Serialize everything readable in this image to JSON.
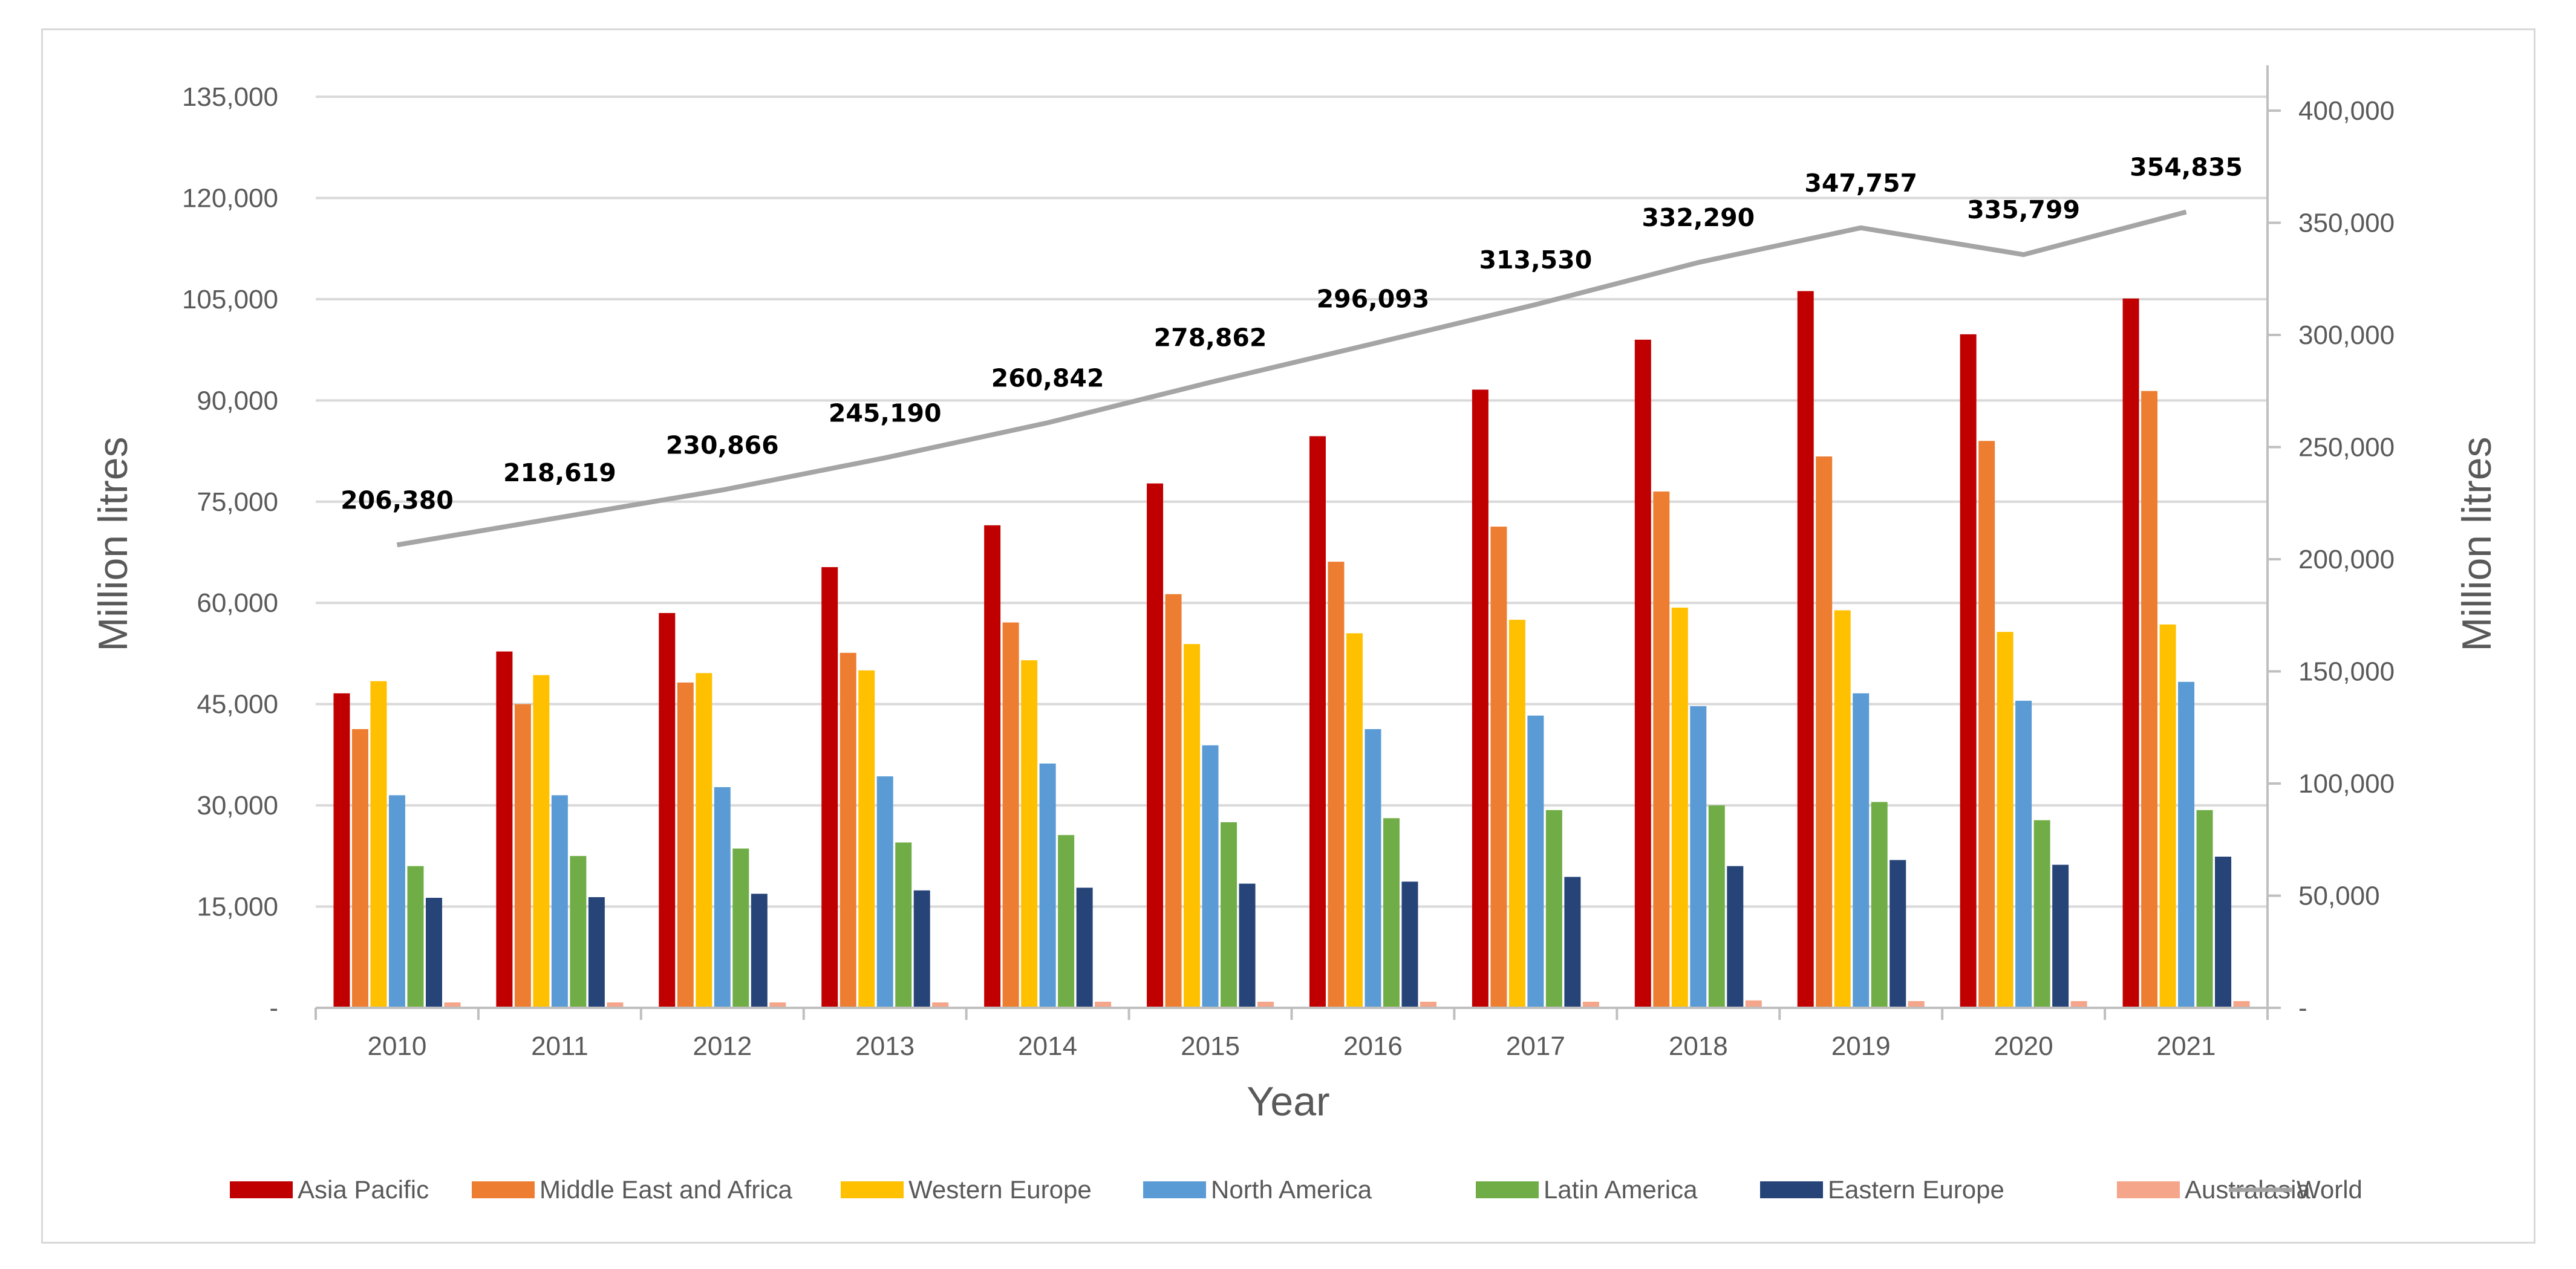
{
  "chart_data": {
    "type": "bar",
    "categories": [
      "2010",
      "2011",
      "2012",
      "2013",
      "2014",
      "2015",
      "2016",
      "2017",
      "2018",
      "2019",
      "2020",
      "2021"
    ],
    "series": [
      {
        "name": "Asia Pacific",
        "color": "#c00000",
        "values": [
          46600,
          52800,
          58500,
          65300,
          71500,
          77700,
          84700,
          91600,
          99000,
          106200,
          99800,
          105100
        ]
      },
      {
        "name": "Middle East and Africa",
        "color": "#ed7d31",
        "values": [
          41300,
          45000,
          48200,
          52600,
          57100,
          61300,
          66100,
          71300,
          76500,
          81700,
          84000,
          91400
        ]
      },
      {
        "name": "Western Europe",
        "color": "#ffc000",
        "values": [
          48400,
          49300,
          49600,
          50000,
          51500,
          53900,
          55500,
          57500,
          59300,
          58900,
          55700,
          56800
        ]
      },
      {
        "name": "North America",
        "color": "#5b9bd5",
        "values": [
          31500,
          31500,
          32700,
          34300,
          36200,
          38900,
          41300,
          43300,
          44700,
          46600,
          45500,
          48300
        ]
      },
      {
        "name": "Latin America",
        "color": "#70ad47",
        "values": [
          21000,
          22500,
          23600,
          24500,
          25600,
          27500,
          28100,
          29300,
          30000,
          30500,
          27800,
          29300
        ]
      },
      {
        "name": "Eastern Europe",
        "color": "#264478",
        "values": [
          16300,
          16400,
          16900,
          17400,
          17800,
          18400,
          18700,
          19400,
          21000,
          21900,
          21200,
          22400
        ]
      },
      {
        "name": "Australasia",
        "color": "#f4a58a",
        "values": [
          800,
          800,
          800,
          800,
          900,
          900,
          900,
          900,
          1100,
          1000,
          1000,
          1000
        ]
      }
    ],
    "line_series": {
      "name": "World",
      "color": "#a5a5a5",
      "axis": "right",
      "values": [
        206380,
        218619,
        230866,
        245190,
        260842,
        278862,
        296093,
        313530,
        332290,
        347757,
        335799,
        354835
      ],
      "labels": [
        "206,380",
        "218,619",
        "230,866",
        "245,190",
        "260,842",
        "278,862",
        "296,093",
        "313,530",
        "332,290",
        "347,757",
        "335,799",
        "354,835"
      ]
    },
    "xlabel": "Year",
    "ylabel": "Million litres",
    "y2label": "Million litres",
    "ylim": [
      0,
      135000
    ],
    "y2lim": [
      0,
      400000
    ],
    "yticks": [
      0,
      15000,
      30000,
      45000,
      60000,
      75000,
      90000,
      105000,
      120000,
      135000
    ],
    "ytick_labels": [
      "-",
      "15,000",
      "30,000",
      "45,000",
      "60,000",
      "75,000",
      "90,000",
      "105,000",
      "120,000",
      "135,000"
    ],
    "y2ticks": [
      0,
      50000,
      100000,
      150000,
      200000,
      250000,
      300000,
      350000,
      400000
    ],
    "y2tick_labels": [
      "-",
      "50,000",
      "100,000",
      "150,000",
      "200,000",
      "250,000",
      "300,000",
      "350,000",
      "400,000"
    ],
    "grid": true,
    "legend_position": "bottom",
    "legend": [
      "Asia Pacific",
      "Middle East and Africa",
      "Western Europe",
      "North America",
      "Latin America",
      "Eastern Europe",
      "Australasia",
      "World"
    ]
  }
}
